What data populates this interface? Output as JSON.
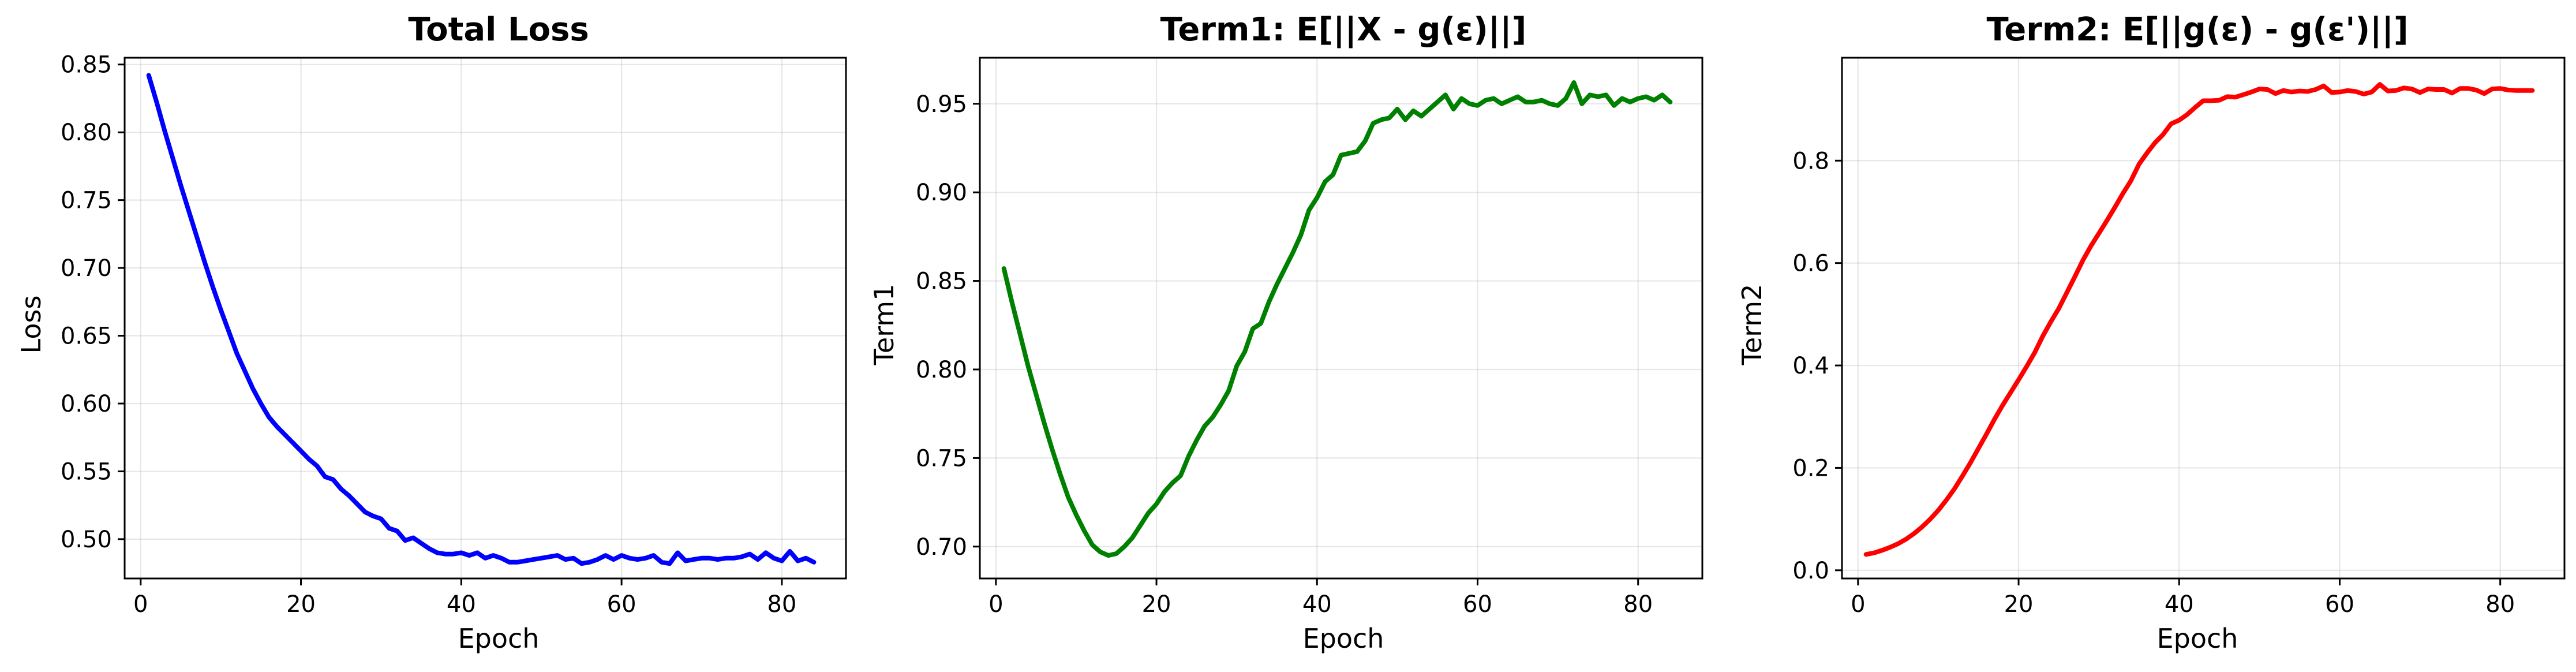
{
  "chart_data": [
    {
      "type": "line",
      "title": "Total Loss",
      "xlabel": "Epoch",
      "ylabel": "Loss",
      "xlim": [
        -2,
        88
      ],
      "ylim": [
        0.471,
        0.855
      ],
      "xticks": [
        0,
        20,
        40,
        60,
        80
      ],
      "yticks": [
        0.5,
        0.55,
        0.6,
        0.65,
        0.7,
        0.75,
        0.8,
        0.85
      ],
      "ytick_labels": [
        "0.50",
        "0.55",
        "0.60",
        "0.65",
        "0.70",
        "0.75",
        "0.80",
        "0.85"
      ],
      "grid": true,
      "color": "#0000ff",
      "series": [
        {
          "x": [
            1,
            2,
            3,
            4,
            5,
            6,
            7,
            8,
            9,
            10,
            11,
            12,
            13,
            14,
            15,
            16,
            17,
            18,
            19,
            20,
            21,
            22,
            23,
            24,
            25,
            26,
            27,
            28,
            29,
            30,
            31,
            32,
            33,
            34,
            35,
            36,
            37,
            38,
            39,
            40,
            41,
            42,
            43,
            44,
            45,
            46,
            47,
            48,
            49,
            50,
            51,
            52,
            53,
            54,
            55,
            56,
            57,
            58,
            59,
            60,
            61,
            62,
            63,
            64,
            65,
            66,
            67,
            68,
            69,
            70,
            71,
            72,
            73,
            74,
            75,
            76,
            77,
            78,
            79,
            80,
            81,
            82,
            83,
            84
          ],
          "values": [
            0.842,
            0.822,
            0.801,
            0.781,
            0.761,
            0.742,
            0.723,
            0.704,
            0.686,
            0.669,
            0.653,
            0.637,
            0.624,
            0.611,
            0.6,
            0.59,
            0.583,
            0.577,
            0.571,
            0.565,
            0.559,
            0.554,
            0.546,
            0.544,
            0.537,
            0.532,
            0.526,
            0.52,
            0.517,
            0.515,
            0.508,
            0.506,
            0.499,
            0.501,
            0.497,
            0.493,
            0.49,
            0.489,
            0.489,
            0.49,
            0.488,
            0.49,
            0.486,
            0.488,
            0.486,
            0.483,
            0.483,
            0.484,
            0.485,
            0.486,
            0.487,
            0.488,
            0.485,
            0.486,
            0.482,
            0.483,
            0.485,
            0.488,
            0.485,
            0.488,
            0.486,
            0.485,
            0.486,
            0.488,
            0.483,
            0.482,
            0.49,
            0.484,
            0.485,
            0.486,
            0.486,
            0.485,
            0.486,
            0.486,
            0.487,
            0.489,
            0.485,
            0.49,
            0.486,
            0.484,
            0.491,
            0.484,
            0.486,
            0.483
          ]
        }
      ]
    },
    {
      "type": "line",
      "title": "Term1: E[||X - g(ε)||]",
      "xlabel": "Epoch",
      "ylabel": "Term1",
      "xlim": [
        -2,
        88
      ],
      "ylim": [
        0.682,
        0.976
      ],
      "xticks": [
        0,
        20,
        40,
        60,
        80
      ],
      "yticks": [
        0.7,
        0.75,
        0.8,
        0.85,
        0.9,
        0.95
      ],
      "ytick_labels": [
        "0.70",
        "0.75",
        "0.80",
        "0.85",
        "0.90",
        "0.95"
      ],
      "grid": true,
      "color": "#008000",
      "series": [
        {
          "x": [
            1,
            2,
            3,
            4,
            5,
            6,
            7,
            8,
            9,
            10,
            11,
            12,
            13,
            14,
            15,
            16,
            17,
            18,
            19,
            20,
            21,
            22,
            23,
            24,
            25,
            26,
            27,
            28,
            29,
            30,
            31,
            32,
            33,
            34,
            35,
            36,
            37,
            38,
            39,
            40,
            41,
            42,
            43,
            44,
            45,
            46,
            47,
            48,
            49,
            50,
            51,
            52,
            53,
            54,
            55,
            56,
            57,
            58,
            59,
            60,
            61,
            62,
            63,
            64,
            65,
            66,
            67,
            68,
            69,
            70,
            71,
            72,
            73,
            74,
            75,
            76,
            77,
            78,
            79,
            80,
            81,
            82,
            83,
            84
          ],
          "values": [
            0.857,
            0.838,
            0.82,
            0.802,
            0.786,
            0.77,
            0.755,
            0.741,
            0.728,
            0.718,
            0.709,
            0.701,
            0.697,
            0.695,
            0.696,
            0.7,
            0.705,
            0.712,
            0.719,
            0.724,
            0.731,
            0.736,
            0.74,
            0.751,
            0.76,
            0.768,
            0.773,
            0.78,
            0.788,
            0.802,
            0.81,
            0.823,
            0.826,
            0.838,
            0.848,
            0.857,
            0.866,
            0.876,
            0.89,
            0.897,
            0.906,
            0.91,
            0.921,
            0.922,
            0.923,
            0.929,
            0.939,
            0.941,
            0.942,
            0.947,
            0.941,
            0.946,
            0.943,
            0.947,
            0.951,
            0.955,
            0.947,
            0.953,
            0.95,
            0.949,
            0.952,
            0.953,
            0.95,
            0.952,
            0.954,
            0.951,
            0.951,
            0.952,
            0.95,
            0.949,
            0.953,
            0.962,
            0.95,
            0.955,
            0.954,
            0.955,
            0.949,
            0.953,
            0.951,
            0.953,
            0.954,
            0.952,
            0.955,
            0.951
          ]
        }
      ]
    },
    {
      "type": "line",
      "title": "Term2: E[||g(ε) - g(ε')||]",
      "xlabel": "Epoch",
      "ylabel": "Term2",
      "xlim": [
        -2,
        88
      ],
      "ylim": [
        -0.016,
        1.001
      ],
      "xticks": [
        0,
        20,
        40,
        60,
        80
      ],
      "yticks": [
        0.0,
        0.2,
        0.4,
        0.6,
        0.8
      ],
      "ytick_labels": [
        "0.0",
        "0.2",
        "0.4",
        "0.6",
        "0.8"
      ],
      "grid": true,
      "color": "#ff0000",
      "series": [
        {
          "x": [
            1,
            2,
            3,
            4,
            5,
            6,
            7,
            8,
            9,
            10,
            11,
            12,
            13,
            14,
            15,
            16,
            17,
            18,
            19,
            20,
            21,
            22,
            23,
            24,
            25,
            26,
            27,
            28,
            29,
            30,
            31,
            32,
            33,
            34,
            35,
            36,
            37,
            38,
            39,
            40,
            41,
            42,
            43,
            44,
            45,
            46,
            47,
            48,
            49,
            50,
            51,
            52,
            53,
            54,
            55,
            56,
            57,
            58,
            59,
            60,
            61,
            62,
            63,
            64,
            65,
            66,
            67,
            68,
            69,
            70,
            71,
            72,
            73,
            74,
            75,
            76,
            77,
            78,
            79,
            80,
            81,
            82,
            83,
            84
          ],
          "values": [
            0.031,
            0.034,
            0.039,
            0.045,
            0.052,
            0.061,
            0.072,
            0.085,
            0.1,
            0.117,
            0.137,
            0.159,
            0.184,
            0.21,
            0.238,
            0.266,
            0.295,
            0.322,
            0.347,
            0.372,
            0.398,
            0.425,
            0.457,
            0.485,
            0.511,
            0.542,
            0.573,
            0.605,
            0.633,
            0.658,
            0.683,
            0.709,
            0.736,
            0.761,
            0.793,
            0.815,
            0.835,
            0.851,
            0.872,
            0.879,
            0.89,
            0.904,
            0.917,
            0.917,
            0.918,
            0.925,
            0.924,
            0.929,
            0.934,
            0.94,
            0.939,
            0.931,
            0.937,
            0.934,
            0.936,
            0.935,
            0.939,
            0.946,
            0.933,
            0.934,
            0.937,
            0.935,
            0.93,
            0.934,
            0.949,
            0.936,
            0.937,
            0.942,
            0.94,
            0.933,
            0.94,
            0.939,
            0.939,
            0.932,
            0.941,
            0.941,
            0.938,
            0.931,
            0.94,
            0.941,
            0.938,
            0.937,
            0.937,
            0.937
          ]
        }
      ]
    }
  ]
}
